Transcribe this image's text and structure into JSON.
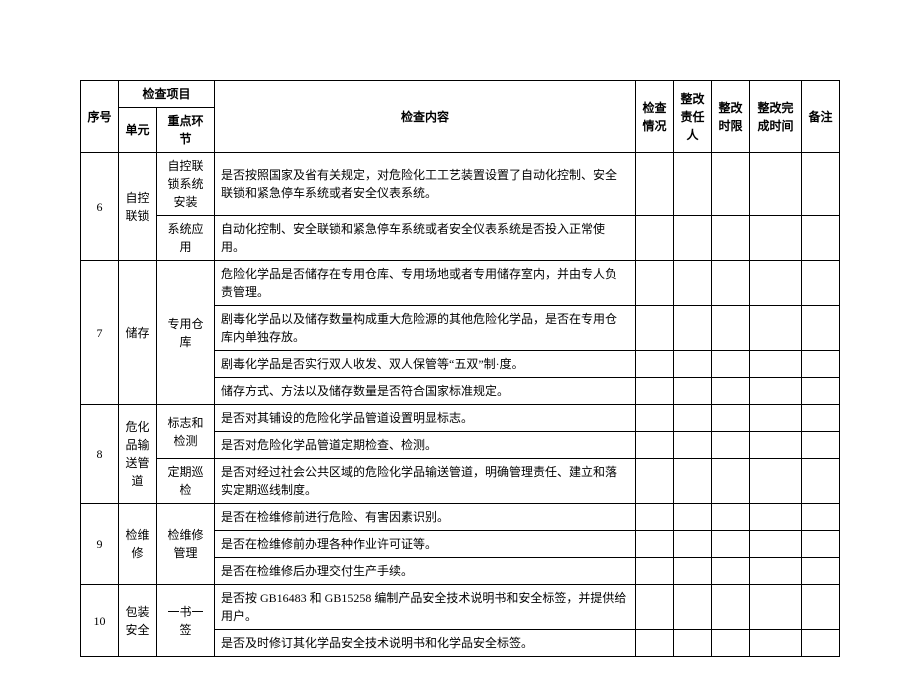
{
  "header": {
    "seq": "序号",
    "project": "检查项目",
    "unit": "单元",
    "key": "重点环节",
    "content": "检查内容",
    "check": "检查情况",
    "resp": "整改责任人",
    "deadline": "整改时限",
    "complete": "整改完成时间",
    "remark": "备注"
  },
  "rows": [
    {
      "seq": "6",
      "unit": "自控联锁",
      "items": [
        {
          "key": "自控联锁系统安装",
          "content": "是否按照国家及省有关规定，对危险化工工艺装置设置了自动化控制、安全联锁和紧急停车系统或者安全仪表系统。"
        },
        {
          "key": "系统应用",
          "content": "自动化控制、安全联锁和紧急停车系统或者安全仪表系统是否投入正常使用。"
        }
      ]
    },
    {
      "seq": "7",
      "unit": "储存",
      "items": [
        {
          "key": "专用仓库",
          "keyspan": 4,
          "content": "危险化学品是否储存在专用仓库、专用场地或者专用储存室内，并由专人负责管理。"
        },
        {
          "content": "剧毒化学品以及储存数量构成重大危险源的其他危险化学品，是否在专用仓库内单独存放。"
        },
        {
          "content": "剧毒化学品是否实行双人收发、双人保管等“五双”制·度。"
        },
        {
          "content": "储存方式、方法以及储存数量是否符合国家标准规定。"
        }
      ]
    },
    {
      "seq": "8",
      "unit": "危化品输送管道",
      "items": [
        {
          "key": "标志和检测",
          "keyspan": 2,
          "content": "是否对其铺设的危险化学品管道设置明显标志。"
        },
        {
          "content": "是否对危险化学品管道定期检查、检测。"
        },
        {
          "key": "定期巡检",
          "content": "是否对经过社会公共区域的危险化学品输送管道，明确管理责任、建立和落实定期巡线制度。"
        }
      ]
    },
    {
      "seq": "9",
      "unit": "检维修",
      "items": [
        {
          "key": "检维修管理",
          "keyspan": 3,
          "content": "是否在检维修前进行危险、有害因素识别。"
        },
        {
          "content": "是否在检维修前办理各种作业许可证等。"
        },
        {
          "content": "是否在检维修后办理交付生产手续。"
        }
      ]
    },
    {
      "seq": "10",
      "unit": "包装安全",
      "items": [
        {
          "key": "一书一签",
          "keyspan": 2,
          "content": "是否按 GB16483 和 GB15258 编制产品安全技术说明书和安全标签，并提供给用户。"
        },
        {
          "content": "是否及时修订其化学品安全技术说明书和化学品安全标签。"
        }
      ]
    }
  ]
}
